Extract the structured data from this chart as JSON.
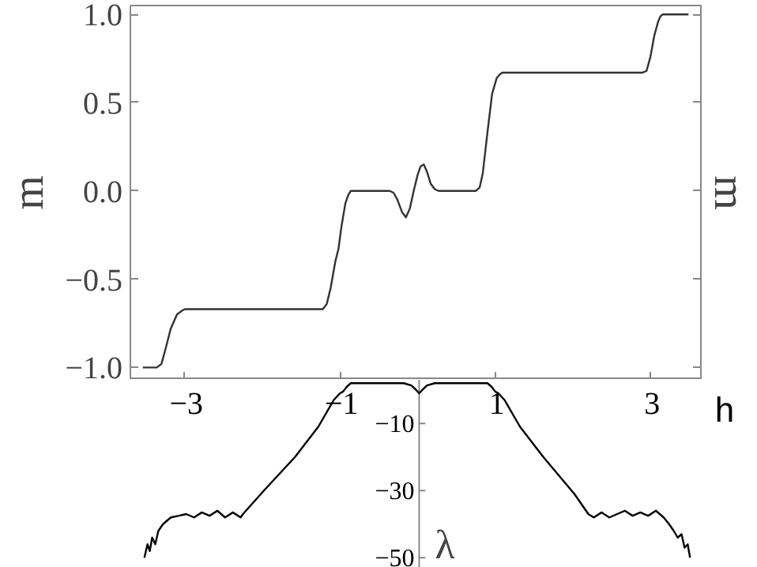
{
  "chart_data": [
    {
      "type": "line",
      "ylabel": "m",
      "y2label": "m",
      "xlim": [
        -3.7,
        3.65
      ],
      "ylim": [
        -1.07,
        1.05
      ],
      "tick_labels": "y",
      "line_style": "solid",
      "xticks": [
        {
          "value": -3,
          "label": null
        },
        {
          "value": -1,
          "label": null
        },
        {
          "value": 1,
          "label": null
        },
        {
          "value": 3,
          "label": null
        }
      ],
      "yticks": [
        {
          "value": -1.0,
          "label": "−1.0"
        },
        {
          "value": -0.5,
          "label": "−0.5"
        },
        {
          "value": 0.0,
          "label": "0.0"
        },
        {
          "value": 0.5,
          "label": "0.5"
        },
        {
          "value": 1.0,
          "label": "1.0"
        }
      ],
      "x": [
        -3.54,
        -3.36,
        -3.3,
        -3.25,
        -3.18,
        -3.1,
        -3.04,
        -3.0,
        -2.5,
        -2.0,
        -1.5,
        -1.22,
        -1.17,
        -1.12,
        -1.06,
        -1.02,
        -0.98,
        -0.93,
        -0.89,
        -0.86,
        -0.7,
        -0.5,
        -0.36,
        -0.31,
        -0.26,
        -0.2,
        -0.15,
        -0.1,
        -0.05,
        0.0,
        0.04,
        0.08,
        0.12,
        0.17,
        0.22,
        0.27,
        0.4,
        0.6,
        0.75,
        0.8,
        0.84,
        0.9,
        0.96,
        1.02,
        1.06,
        1.09,
        1.15,
        1.5,
        2.0,
        2.5,
        2.9,
        2.95,
        3.0,
        3.05,
        3.1,
        3.13,
        3.16,
        3.25,
        3.49
      ],
      "series": [
        {
          "color": "#333333",
          "values": [
            -1.0,
            -1.0,
            -0.98,
            -0.9,
            -0.78,
            -0.7,
            -0.68,
            -0.67,
            -0.67,
            -0.67,
            -0.67,
            -0.67,
            -0.64,
            -0.55,
            -0.4,
            -0.33,
            -0.2,
            -0.07,
            -0.02,
            0.0,
            0.0,
            0.0,
            0.0,
            -0.01,
            -0.05,
            -0.12,
            -0.15,
            -0.1,
            0.0,
            0.09,
            0.14,
            0.15,
            0.11,
            0.04,
            0.01,
            0.0,
            0.0,
            0.0,
            0.0,
            0.02,
            0.1,
            0.33,
            0.55,
            0.64,
            0.66,
            0.67,
            0.67,
            0.67,
            0.67,
            0.67,
            0.67,
            0.68,
            0.76,
            0.88,
            0.96,
            0.99,
            1.0,
            1.0,
            1.0
          ]
        }
      ]
    },
    {
      "type": "line",
      "xlabel": "h",
      "ylabel": "λ",
      "xlim": [
        -3.7,
        3.65
      ],
      "ylim": [
        -53,
        3
      ],
      "line_style": "solid",
      "xticks": [
        {
          "value": -3,
          "label": "−3"
        },
        {
          "value": -1,
          "label": "−1"
        },
        {
          "value": 1,
          "label": "1"
        },
        {
          "value": 3,
          "label": "3"
        }
      ],
      "yticks": [
        {
          "value": -10,
          "label": "−10"
        },
        {
          "value": -30,
          "label": "−30"
        },
        {
          "value": -50,
          "label": "−50"
        }
      ],
      "x": [
        -3.54,
        -3.5,
        -3.47,
        -3.44,
        -3.4,
        -3.36,
        -3.3,
        -3.2,
        -3.1,
        -3.0,
        -2.9,
        -2.8,
        -2.7,
        -2.6,
        -2.5,
        -2.4,
        -2.3,
        -2.27,
        -2.0,
        -1.6,
        -1.3,
        -1.1,
        -1.02,
        -0.98,
        -0.93,
        -0.88,
        -0.5,
        -0.2,
        -0.1,
        -0.04,
        0.0,
        0.04,
        0.1,
        0.2,
        0.5,
        0.88,
        0.93,
        0.98,
        1.02,
        1.1,
        1.3,
        1.6,
        2.0,
        2.18,
        2.25,
        2.35,
        2.45,
        2.55,
        2.65,
        2.75,
        2.85,
        2.95,
        3.05,
        3.15,
        3.22,
        3.28,
        3.33,
        3.38,
        3.42,
        3.46,
        3.49
      ],
      "series": [
        {
          "color": "#000000",
          "values": [
            -50,
            -46,
            -48,
            -44,
            -46,
            -42,
            -40,
            -38,
            -37.5,
            -37,
            -38,
            -36.5,
            -37.5,
            -36,
            -38,
            -36.5,
            -38,
            -37,
            -30,
            -20,
            -11,
            -3,
            -1,
            -0.5,
            1,
            2,
            2,
            2,
            1.3,
            0,
            -1,
            0,
            1.3,
            2,
            2,
            2,
            1,
            -0.5,
            -1,
            -3,
            -11,
            -20,
            -31,
            -37,
            -38,
            -36.5,
            -38,
            -37,
            -36,
            -37.5,
            -36.5,
            -37.5,
            -36,
            -38,
            -40,
            -42,
            -44,
            -43,
            -47,
            -46,
            -50
          ]
        }
      ]
    }
  ]
}
